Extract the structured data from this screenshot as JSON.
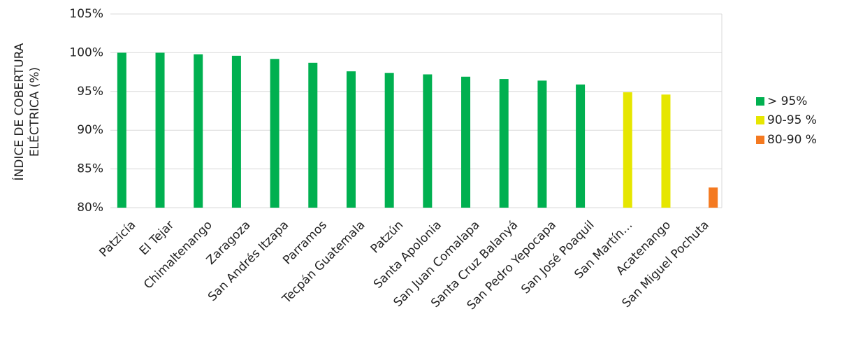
{
  "chart_data": {
    "type": "bar",
    "ylabel": [
      "ÍNDICE DE COBERTURA",
      "ELÉCTRICA (%)"
    ],
    "categories": [
      "Patzicía",
      "El Tejar",
      "Chimaltenango",
      "Zaragoza",
      "San Andrés Itzapa",
      "Parramos",
      "Tecpán Guatemala",
      "Patzún",
      "Santa Apolonia",
      "San Juan Comalapa",
      "Santa Cruz Balanyá",
      "San Pedro Yepocapa",
      "San José Poaquil",
      "San Martín…",
      "Acatenango",
      "San Miguel Pochuta"
    ],
    "series": [
      {
        "name": "> 95%",
        "color": "#00b050",
        "values": [
          100,
          100,
          99.8,
          99.6,
          99.2,
          98.7,
          97.6,
          97.4,
          97.2,
          96.9,
          96.6,
          96.4,
          95.9,
          null,
          null,
          null
        ]
      },
      {
        "name": "90-95 %",
        "color": "#e6e600",
        "values": [
          null,
          null,
          null,
          null,
          null,
          null,
          null,
          null,
          null,
          null,
          null,
          null,
          null,
          94.9,
          94.6,
          null
        ]
      },
      {
        "name": "80-90 %",
        "color": "#f47920",
        "values": [
          null,
          null,
          null,
          null,
          null,
          null,
          null,
          null,
          null,
          null,
          null,
          null,
          null,
          null,
          null,
          82.6
        ]
      }
    ],
    "ylim": [
      80,
      105
    ],
    "yticks": [
      {
        "value": 80,
        "label": "80%"
      },
      {
        "value": 85,
        "label": "85%"
      },
      {
        "value": 90,
        "label": "90%"
      },
      {
        "value": 95,
        "label": "95%"
      },
      {
        "value": 100,
        "label": "100%"
      },
      {
        "value": 105,
        "label": "105%"
      }
    ],
    "grid": true,
    "legend": "right"
  }
}
